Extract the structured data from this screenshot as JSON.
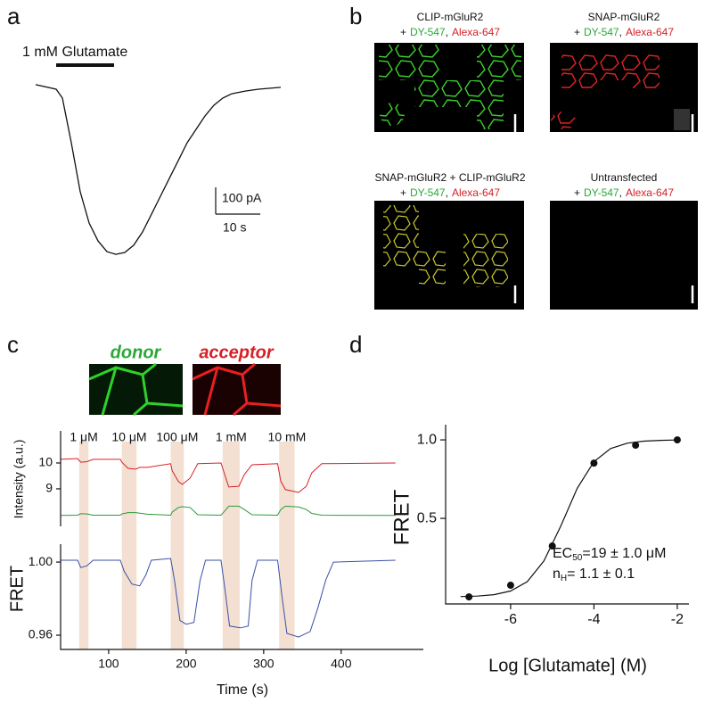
{
  "panel_labels": [
    "a",
    "b",
    "c",
    "d"
  ],
  "panel_b": {
    "images": [
      {
        "title": "CLIP-mGluR2",
        "stain": {
          "prefix": "+",
          "dye1": "DY-547",
          "separator": ",",
          "dye2": "Alexa-647"
        }
      },
      {
        "title": "SNAP-mGluR2",
        "stain": {
          "prefix": "+",
          "dye1": "DY-547",
          "separator": ",",
          "dye2": "Alexa-647"
        }
      },
      {
        "title": "SNAP-mGluR2 + CLIP-mGluR2",
        "stain": {
          "prefix": "+",
          "dye1": "DY-547",
          "separator": ",",
          "dye2": "Alexa-647"
        }
      },
      {
        "title": "Untransfected",
        "stain": {
          "prefix": "+",
          "dye1": "DY-547",
          "separator": ",",
          "dye2": "Alexa-647"
        }
      }
    ]
  },
  "panel_c": {
    "channels": [
      "donor",
      "acceptor"
    ]
  },
  "chart_data": [
    {
      "type": "line",
      "stimulus": {
        "label": "1 mM Glutamate",
        "start": 4.6,
        "end": 17.6
      },
      "scalebar": {
        "x": {
          "value": 10,
          "label": "10 s"
        },
        "y": {
          "value": 100,
          "label": "100 pA"
        }
      },
      "xlim": [
        0,
        55
      ],
      "ylim": [
        -660,
        30
      ],
      "color": "#111111",
      "x": [
        0,
        4.6,
        6,
        8,
        10,
        12,
        14,
        16,
        18,
        20,
        22,
        24,
        26,
        28,
        30,
        32,
        34,
        36,
        38,
        40,
        42,
        44,
        47,
        50,
        55
      ],
      "values": [
        7,
        -10,
        -43,
        -210,
        -393,
        -510,
        -577,
        -617,
        -627,
        -620,
        -593,
        -543,
        -477,
        -410,
        -343,
        -277,
        -210,
        -160,
        -110,
        -70,
        -43,
        -27,
        -17,
        -10,
        -3
      ]
    },
    {
      "type": "line",
      "ylabel": "Intensity (a.u.)",
      "xlim": [
        38,
        506
      ],
      "ylim": [
        7.55,
        11.24
      ],
      "yticks": [
        9,
        10
      ],
      "stimuli": [
        {
          "label": "1 μM",
          "start": 62,
          "end": 74
        },
        {
          "label": "10 μM",
          "start": 117,
          "end": 136
        },
        {
          "label": "100 μM",
          "start": 180,
          "end": 197
        },
        {
          "label": "1 mM",
          "start": 247,
          "end": 269
        },
        {
          "label": "10 mM",
          "start": 320,
          "end": 340
        }
      ],
      "x": [
        38,
        60,
        64,
        72,
        80,
        115,
        117,
        125,
        135,
        140,
        150,
        180,
        182,
        190,
        195,
        205,
        215,
        245,
        250,
        255,
        268,
        275,
        285,
        318,
        322,
        328,
        345,
        355,
        362,
        375,
        470
      ],
      "series": [
        {
          "name": "acceptor",
          "color": "#d62027",
          "values": [
            10.14,
            10.17,
            10.03,
            10.05,
            10.14,
            10.14,
            10.03,
            9.79,
            9.76,
            9.83,
            9.83,
            9.97,
            9.7,
            9.28,
            9.17,
            9.41,
            9.97,
            10.0,
            9.52,
            9.07,
            9.1,
            9.55,
            9.93,
            9.97,
            9.3,
            8.97,
            8.86,
            9.1,
            9.62,
            9.97,
            10.0
          ]
        },
        {
          "name": "donor",
          "color": "#2a9a3a",
          "values": [
            7.97,
            7.98,
            8.04,
            8.03,
            7.98,
            7.98,
            8.03,
            8.08,
            8.08,
            8.06,
            8.02,
            7.98,
            8.1,
            8.28,
            8.31,
            8.28,
            8.0,
            7.98,
            8.15,
            8.33,
            8.33,
            8.2,
            8.0,
            7.98,
            8.2,
            8.33,
            8.3,
            8.2,
            8.05,
            7.98,
            7.97
          ]
        }
      ]
    },
    {
      "type": "line",
      "ylabel": "FRET",
      "xlabel": "Time (s)",
      "xlim": [
        38,
        506
      ],
      "ylim": [
        0.9522,
        1.0098
      ],
      "yticks": [
        {
          "value": 1,
          "label": "1.00"
        },
        {
          "value": 0.96,
          "label": "0.96"
        }
      ],
      "xticks": [
        100,
        200,
        300,
        400
      ],
      "color": "#3a4fa8",
      "x": [
        38,
        60,
        64,
        72,
        80,
        115,
        120,
        130,
        140,
        148,
        155,
        180,
        185,
        192,
        200,
        210,
        218,
        225,
        245,
        250,
        256,
        270,
        280,
        285,
        292,
        318,
        324,
        330,
        345,
        360,
        370,
        380,
        390,
        470
      ],
      "values": [
        1.001,
        1.001,
        0.997,
        0.998,
        1.001,
        1.001,
        0.995,
        0.988,
        0.987,
        0.993,
        1.001,
        1.002,
        0.99,
        0.968,
        0.966,
        0.967,
        0.99,
        1.001,
        1.001,
        0.985,
        0.965,
        0.964,
        0.965,
        0.99,
        1.001,
        1.001,
        0.98,
        0.961,
        0.959,
        0.962,
        0.975,
        0.99,
        1.0,
        1.001
      ]
    },
    {
      "type": "scatter",
      "xlabel": "Log [Glutamate] (M)",
      "ylabel": "FRET",
      "xlim": [
        -7.56,
        -1.72
      ],
      "ylim": [
        -0.045,
        1.097
      ],
      "xticks": [
        -6,
        -4,
        -2
      ],
      "yticks": [
        {
          "value": 1,
          "label": "1.0"
        },
        {
          "value": 0.5,
          "label": "0.5"
        }
      ],
      "color": "#111111",
      "x": [
        -7,
        -6,
        -5,
        -4,
        -3,
        -2
      ],
      "values": [
        0.0,
        0.074,
        0.324,
        0.852,
        0.966,
        1.0
      ],
      "fit": {
        "x": [
          -7.2,
          -6.8,
          -6.4,
          -6.0,
          -5.6,
          -5.2,
          -4.8,
          -4.4,
          -4.0,
          -3.6,
          -3.2,
          -2.8,
          -2.4,
          -2.0
        ],
        "values": [
          0.0019,
          0.0051,
          0.014,
          0.0376,
          0.097,
          0.229,
          0.449,
          0.692,
          0.861,
          0.945,
          0.979,
          0.992,
          0.997,
          0.999
        ]
      },
      "annotations": [
        {
          "main": "EC",
          "sub": "50",
          "rest": "=19 ± 1.0 μM"
        },
        {
          "main": "n",
          "sub": "H",
          "rest": "= 1.1 ± 0.1"
        }
      ]
    }
  ]
}
